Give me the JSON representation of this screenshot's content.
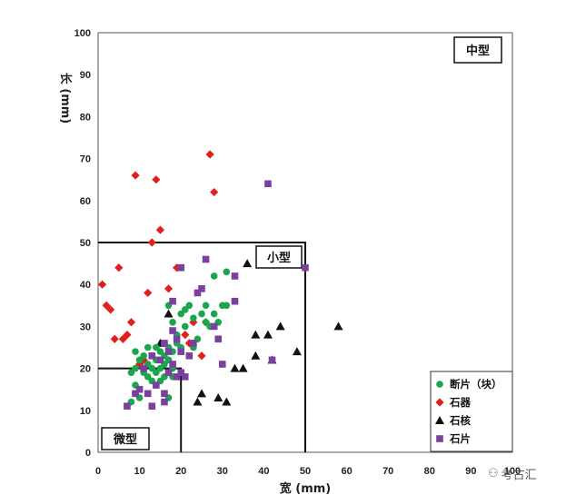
{
  "chart_data": {
    "type": "scatter",
    "xlabel": "宽 (mm)",
    "ylabel": "长 (mm)",
    "xlim": [
      0,
      100
    ],
    "ylim": [
      0,
      100
    ],
    "x_ticks": [
      0,
      10,
      20,
      30,
      40,
      50,
      60,
      70,
      80,
      90,
      100
    ],
    "y_ticks": [
      0,
      10,
      20,
      30,
      40,
      50,
      60,
      70,
      80,
      90,
      100
    ],
    "grid": false,
    "legend_position": "bottom-right",
    "regions": [
      {
        "label": "中型",
        "x_max": 100,
        "y_max": 100
      },
      {
        "label": "小型",
        "x_max": 50,
        "y_max": 50
      },
      {
        "label": "微型",
        "x_max": 20,
        "y_max": 20
      }
    ],
    "series": [
      {
        "name": "断片（块）",
        "marker": "circle",
        "color": "#1aa64b",
        "points": [
          [
            7,
            11
          ],
          [
            8,
            12
          ],
          [
            9,
            14
          ],
          [
            9,
            16
          ],
          [
            10,
            13
          ],
          [
            8,
            19
          ],
          [
            9,
            20
          ],
          [
            10,
            22
          ],
          [
            11,
            19
          ],
          [
            11,
            23
          ],
          [
            12,
            18
          ],
          [
            12,
            21
          ],
          [
            13,
            17
          ],
          [
            13,
            20
          ],
          [
            13,
            23
          ],
          [
            14,
            19
          ],
          [
            14,
            22
          ],
          [
            14,
            25
          ],
          [
            15,
            17
          ],
          [
            15,
            20
          ],
          [
            15,
            24
          ],
          [
            16,
            18
          ],
          [
            16,
            21
          ],
          [
            16,
            23
          ],
          [
            17,
            13
          ],
          [
            17,
            22
          ],
          [
            17,
            25
          ],
          [
            17,
            35
          ],
          [
            18,
            20
          ],
          [
            18,
            24
          ],
          [
            18,
            31
          ],
          [
            19,
            26
          ],
          [
            19,
            28
          ],
          [
            20,
            25
          ],
          [
            20,
            33
          ],
          [
            21,
            30
          ],
          [
            21,
            34
          ],
          [
            22,
            35
          ],
          [
            23,
            25
          ],
          [
            23,
            32
          ],
          [
            24,
            27
          ],
          [
            25,
            33
          ],
          [
            26,
            31
          ],
          [
            26,
            35
          ],
          [
            27,
            30
          ],
          [
            28,
            33
          ],
          [
            28,
            42
          ],
          [
            29,
            31
          ],
          [
            30,
            35
          ],
          [
            31,
            35
          ],
          [
            31,
            43
          ],
          [
            18,
            18
          ],
          [
            9,
            24
          ],
          [
            12,
            25
          ]
        ]
      },
      {
        "name": "石器",
        "marker": "diamond",
        "color": "#e0201b",
        "points": [
          [
            1,
            40
          ],
          [
            2,
            35
          ],
          [
            3,
            34
          ],
          [
            4,
            27
          ],
          [
            5,
            44
          ],
          [
            6,
            27
          ],
          [
            7,
            28
          ],
          [
            8,
            31
          ],
          [
            9,
            66
          ],
          [
            10,
            21
          ],
          [
            11,
            22
          ],
          [
            12,
            38
          ],
          [
            13,
            50
          ],
          [
            14,
            65
          ],
          [
            15,
            53
          ],
          [
            17,
            39
          ],
          [
            19,
            44
          ],
          [
            21,
            28
          ],
          [
            23,
            31
          ],
          [
            25,
            23
          ],
          [
            26,
            31
          ],
          [
            27,
            71
          ],
          [
            28,
            62
          ],
          [
            22,
            26
          ]
        ]
      },
      {
        "name": "石核",
        "marker": "triangle",
        "color": "#111111",
        "points": [
          [
            15,
            26
          ],
          [
            17,
            33
          ],
          [
            24,
            12
          ],
          [
            25,
            14
          ],
          [
            29,
            13
          ],
          [
            31,
            12
          ],
          [
            33,
            20
          ],
          [
            35,
            20
          ],
          [
            36,
            45
          ],
          [
            38,
            23
          ],
          [
            38,
            28
          ],
          [
            41,
            28
          ],
          [
            42,
            22
          ],
          [
            44,
            30
          ],
          [
            48,
            24
          ],
          [
            58,
            30
          ]
        ]
      },
      {
        "name": "石片",
        "marker": "square",
        "color": "#7b3fa0",
        "points": [
          [
            7,
            11
          ],
          [
            9,
            14
          ],
          [
            10,
            15
          ],
          [
            11,
            20
          ],
          [
            12,
            14
          ],
          [
            13,
            11
          ],
          [
            13,
            23
          ],
          [
            14,
            16
          ],
          [
            15,
            22
          ],
          [
            16,
            12
          ],
          [
            16,
            14
          ],
          [
            16,
            26
          ],
          [
            17,
            19
          ],
          [
            17,
            24
          ],
          [
            18,
            21
          ],
          [
            18,
            29
          ],
          [
            18,
            36
          ],
          [
            19,
            18
          ],
          [
            19,
            27
          ],
          [
            20,
            19
          ],
          [
            20,
            24
          ],
          [
            20,
            44
          ],
          [
            21,
            18
          ],
          [
            22,
            23
          ],
          [
            23,
            26
          ],
          [
            24,
            38
          ],
          [
            25,
            39
          ],
          [
            26,
            46
          ],
          [
            28,
            30
          ],
          [
            29,
            27
          ],
          [
            30,
            21
          ],
          [
            33,
            36
          ],
          [
            33,
            42
          ],
          [
            42,
            22
          ],
          [
            41,
            64
          ],
          [
            50,
            44
          ]
        ]
      }
    ]
  },
  "watermark": {
    "text": "考古汇",
    "icon": "wechat-icon"
  }
}
